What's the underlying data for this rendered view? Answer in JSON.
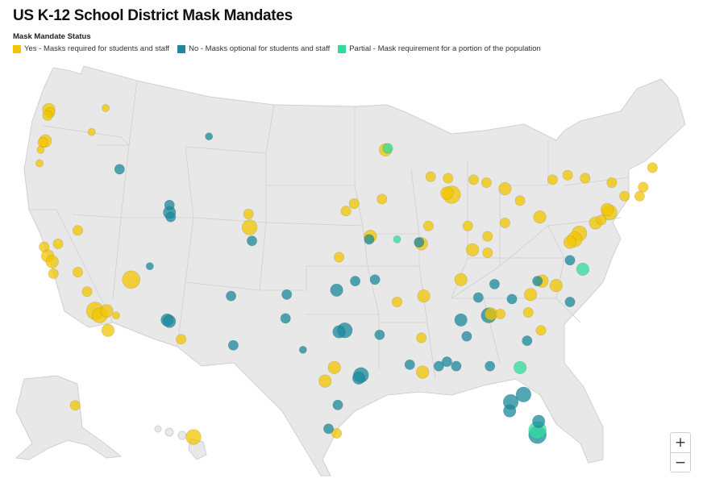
{
  "title": "US K-12 School District Mask Mandates",
  "legend": {
    "title": "Mask Mandate Status",
    "items": [
      {
        "label": "Yes - Masks required for students and staff",
        "color": "#f2c500"
      },
      {
        "label": "No - Masks optional for students and staff",
        "color": "#1a8a9c"
      },
      {
        "label": "Partial - Mask requirement for a portion of the population",
        "color": "#2fdc9c"
      }
    ]
  },
  "zoom": {
    "in_label": "+",
    "out_label": "−"
  },
  "colors": {
    "land": "#e8e8e8",
    "border": "#cfcfcf",
    "water": "#ffffff"
  },
  "districts": [
    {
      "lon": -122.3,
      "lat": 47.6,
      "status": "yes",
      "size": 3
    },
    {
      "lon": -122.2,
      "lat": 47.4,
      "status": "yes",
      "size": 2
    },
    {
      "lon": -122.4,
      "lat": 47.2,
      "status": "yes",
      "size": 2
    },
    {
      "lon": -122.6,
      "lat": 45.5,
      "status": "yes",
      "size": 3
    },
    {
      "lon": -122.8,
      "lat": 45.4,
      "status": "yes",
      "size": 2
    },
    {
      "lon": -117.4,
      "lat": 47.7,
      "status": "yes",
      "size": 1
    },
    {
      "lon": -118.6,
      "lat": 46.1,
      "status": "yes",
      "size": 1
    },
    {
      "lon": -123.0,
      "lat": 44.9,
      "status": "yes",
      "size": 1
    },
    {
      "lon": -123.1,
      "lat": 44.0,
      "status": "yes",
      "size": 1
    },
    {
      "lon": -122.4,
      "lat": 37.8,
      "status": "yes",
      "size": 3
    },
    {
      "lon": -122.0,
      "lat": 37.4,
      "status": "yes",
      "size": 3
    },
    {
      "lon": -121.5,
      "lat": 38.6,
      "status": "yes",
      "size": 2
    },
    {
      "lon": -122.7,
      "lat": 38.4,
      "status": "yes",
      "size": 2
    },
    {
      "lon": -121.9,
      "lat": 36.6,
      "status": "yes",
      "size": 2
    },
    {
      "lon": -119.8,
      "lat": 36.7,
      "status": "yes",
      "size": 2
    },
    {
      "lon": -119.0,
      "lat": 35.4,
      "status": "yes",
      "size": 2
    },
    {
      "lon": -118.3,
      "lat": 34.1,
      "status": "yes",
      "size": 5
    },
    {
      "lon": -117.9,
      "lat": 33.8,
      "status": "yes",
      "size": 4
    },
    {
      "lon": -117.3,
      "lat": 34.1,
      "status": "yes",
      "size": 3
    },
    {
      "lon": -117.2,
      "lat": 32.8,
      "status": "yes",
      "size": 3
    },
    {
      "lon": -116.5,
      "lat": 33.8,
      "status": "yes",
      "size": 1
    },
    {
      "lon": -115.2,
      "lat": 36.2,
      "status": "yes",
      "size": 5
    },
    {
      "lon": -119.8,
      "lat": 39.5,
      "status": "yes",
      "size": 2
    },
    {
      "lon": -116.2,
      "lat": 43.6,
      "status": "no",
      "size": 2
    },
    {
      "lon": -111.9,
      "lat": 40.7,
      "status": "no",
      "size": 3
    },
    {
      "lon": -111.8,
      "lat": 40.4,
      "status": "no",
      "size": 2
    },
    {
      "lon": -111.9,
      "lat": 41.2,
      "status": "no",
      "size": 2
    },
    {
      "lon": -113.6,
      "lat": 37.1,
      "status": "no",
      "size": 1
    },
    {
      "lon": -112.1,
      "lat": 33.5,
      "status": "no",
      "size": 3
    },
    {
      "lon": -111.9,
      "lat": 33.4,
      "status": "no",
      "size": 3
    },
    {
      "lon": -110.9,
      "lat": 32.2,
      "status": "yes",
      "size": 2
    },
    {
      "lon": -105.0,
      "lat": 39.7,
      "status": "yes",
      "size": 4
    },
    {
      "lon": -104.8,
      "lat": 38.8,
      "status": "no",
      "size": 2
    },
    {
      "lon": -105.1,
      "lat": 40.6,
      "status": "yes",
      "size": 2
    },
    {
      "lon": -106.6,
      "lat": 35.1,
      "status": "no",
      "size": 2
    },
    {
      "lon": -106.4,
      "lat": 31.8,
      "status": "no",
      "size": 2
    },
    {
      "lon": -108.5,
      "lat": 45.8,
      "status": "no",
      "size": 1
    },
    {
      "lon": -96.7,
      "lat": 40.8,
      "status": "yes",
      "size": 2
    },
    {
      "lon": -96.0,
      "lat": 41.3,
      "status": "yes",
      "size": 2
    },
    {
      "lon": -97.3,
      "lat": 37.7,
      "status": "yes",
      "size": 2
    },
    {
      "lon": -94.6,
      "lat": 39.1,
      "status": "yes",
      "size": 3
    },
    {
      "lon": -94.7,
      "lat": 38.9,
      "status": "no",
      "size": 2
    },
    {
      "lon": -93.6,
      "lat": 41.6,
      "status": "yes",
      "size": 2
    },
    {
      "lon": -93.3,
      "lat": 44.9,
      "status": "yes",
      "size": 3
    },
    {
      "lon": -93.1,
      "lat": 45.0,
      "status": "partial",
      "size": 2
    },
    {
      "lon": -90.2,
      "lat": 38.6,
      "status": "yes",
      "size": 3
    },
    {
      "lon": -90.4,
      "lat": 38.7,
      "status": "no",
      "size": 2
    },
    {
      "lon": -92.3,
      "lat": 38.9,
      "status": "partial",
      "size": 1
    },
    {
      "lon": -97.5,
      "lat": 35.5,
      "status": "no",
      "size": 3
    },
    {
      "lon": -95.9,
      "lat": 36.1,
      "status": "no",
      "size": 2
    },
    {
      "lon": -96.8,
      "lat": 32.8,
      "status": "no",
      "size": 4
    },
    {
      "lon": -97.3,
      "lat": 32.7,
      "status": "no",
      "size": 3
    },
    {
      "lon": -97.7,
      "lat": 30.3,
      "status": "yes",
      "size": 3
    },
    {
      "lon": -98.5,
      "lat": 29.4,
      "status": "yes",
      "size": 3
    },
    {
      "lon": -95.4,
      "lat": 29.8,
      "status": "no",
      "size": 4
    },
    {
      "lon": -95.6,
      "lat": 29.6,
      "status": "no",
      "size": 3
    },
    {
      "lon": -97.4,
      "lat": 27.8,
      "status": "no",
      "size": 2
    },
    {
      "lon": -97.5,
      "lat": 25.9,
      "status": "yes",
      "size": 2
    },
    {
      "lon": -98.2,
      "lat": 26.2,
      "status": "no",
      "size": 2
    },
    {
      "lon": -101.8,
      "lat": 35.2,
      "status": "no",
      "size": 2
    },
    {
      "lon": -101.9,
      "lat": 33.6,
      "status": "no",
      "size": 2
    },
    {
      "lon": -100.4,
      "lat": 31.5,
      "status": "no",
      "size": 1
    },
    {
      "lon": -92.3,
      "lat": 34.7,
      "status": "yes",
      "size": 2
    },
    {
      "lon": -94.2,
      "lat": 36.2,
      "status": "no",
      "size": 2
    },
    {
      "lon": -91.2,
      "lat": 30.5,
      "status": "no",
      "size": 2
    },
    {
      "lon": -90.1,
      "lat": 30.0,
      "status": "yes",
      "size": 3
    },
    {
      "lon": -93.8,
      "lat": 32.5,
      "status": "no",
      "size": 2
    },
    {
      "lon": -90.2,
      "lat": 32.3,
      "status": "yes",
      "size": 2
    },
    {
      "lon": -88.7,
      "lat": 30.4,
      "status": "no",
      "size": 2
    },
    {
      "lon": -90.0,
      "lat": 35.1,
      "status": "yes",
      "size": 3
    },
    {
      "lon": -86.8,
      "lat": 36.2,
      "status": "yes",
      "size": 3
    },
    {
      "lon": -85.3,
      "lat": 35.0,
      "status": "no",
      "size": 2
    },
    {
      "lon": -83.9,
      "lat": 35.9,
      "status": "no",
      "size": 2
    },
    {
      "lon": -86.8,
      "lat": 33.5,
      "status": "no",
      "size": 3
    },
    {
      "lon": -86.3,
      "lat": 32.4,
      "status": "no",
      "size": 2
    },
    {
      "lon": -88.0,
      "lat": 30.7,
      "status": "no",
      "size": 2
    },
    {
      "lon": -84.4,
      "lat": 33.8,
      "status": "no",
      "size": 4
    },
    {
      "lon": -84.2,
      "lat": 33.9,
      "status": "yes",
      "size": 3
    },
    {
      "lon": -83.4,
      "lat": 33.9,
      "status": "yes",
      "size": 2
    },
    {
      "lon": -81.1,
      "lat": 32.1,
      "status": "no",
      "size": 2
    },
    {
      "lon": -80.8,
      "lat": 35.2,
      "status": "yes",
      "size": 3
    },
    {
      "lon": -78.6,
      "lat": 35.8,
      "status": "yes",
      "size": 3
    },
    {
      "lon": -79.8,
      "lat": 36.1,
      "status": "yes",
      "size": 3
    },
    {
      "lon": -80.2,
      "lat": 36.1,
      "status": "no",
      "size": 2
    },
    {
      "lon": -77.4,
      "lat": 34.7,
      "status": "no",
      "size": 2
    },
    {
      "lon": -81.0,
      "lat": 34.0,
      "status": "yes",
      "size": 2
    },
    {
      "lon": -79.9,
      "lat": 32.8,
      "status": "yes",
      "size": 2
    },
    {
      "lon": -82.4,
      "lat": 34.9,
      "status": "no",
      "size": 2
    },
    {
      "lon": -81.7,
      "lat": 30.3,
      "status": "partial",
      "size": 3
    },
    {
      "lon": -82.5,
      "lat": 28.0,
      "status": "no",
      "size": 4
    },
    {
      "lon": -81.4,
      "lat": 28.5,
      "status": "no",
      "size": 4
    },
    {
      "lon": -82.6,
      "lat": 27.4,
      "status": "no",
      "size": 3
    },
    {
      "lon": -80.2,
      "lat": 25.8,
      "status": "no",
      "size": 5
    },
    {
      "lon": -80.2,
      "lat": 26.1,
      "status": "partial",
      "size": 5
    },
    {
      "lon": -80.1,
      "lat": 26.7,
      "status": "no",
      "size": 3
    },
    {
      "lon": -84.3,
      "lat": 30.4,
      "status": "no",
      "size": 2
    },
    {
      "lon": -87.2,
      "lat": 30.4,
      "status": "no",
      "size": 2
    },
    {
      "lon": -85.8,
      "lat": 38.2,
      "status": "yes",
      "size": 3
    },
    {
      "lon": -84.5,
      "lat": 38.0,
      "status": "yes",
      "size": 2
    },
    {
      "lon": -84.5,
      "lat": 39.1,
      "status": "yes",
      "size": 2
    },
    {
      "lon": -83.0,
      "lat": 40.0,
      "status": "yes",
      "size": 2
    },
    {
      "lon": -81.7,
      "lat": 41.5,
      "status": "yes",
      "size": 2
    },
    {
      "lon": -86.2,
      "lat": 39.8,
      "status": "yes",
      "size": 2
    },
    {
      "lon": -87.6,
      "lat": 41.9,
      "status": "yes",
      "size": 5
    },
    {
      "lon": -88.0,
      "lat": 42.0,
      "status": "yes",
      "size": 3
    },
    {
      "lon": -89.6,
      "lat": 39.8,
      "status": "yes",
      "size": 2
    },
    {
      "lon": -87.9,
      "lat": 43.0,
      "status": "yes",
      "size": 2
    },
    {
      "lon": -89.4,
      "lat": 43.1,
      "status": "yes",
      "size": 2
    },
    {
      "lon": -83.0,
      "lat": 42.3,
      "status": "yes",
      "size": 3
    },
    {
      "lon": -85.7,
      "lat": 42.9,
      "status": "yes",
      "size": 2
    },
    {
      "lon": -84.6,
      "lat": 42.7,
      "status": "yes",
      "size": 2
    },
    {
      "lon": -80.0,
      "lat": 40.4,
      "status": "yes",
      "size": 3
    },
    {
      "lon": -75.2,
      "lat": 40.0,
      "status": "yes",
      "size": 3
    },
    {
      "lon": -76.6,
      "lat": 39.3,
      "status": "yes",
      "size": 4
    },
    {
      "lon": -77.0,
      "lat": 38.9,
      "status": "yes",
      "size": 4
    },
    {
      "lon": -77.4,
      "lat": 38.7,
      "status": "yes",
      "size": 3
    },
    {
      "lon": -77.4,
      "lat": 37.5,
      "status": "no",
      "size": 2
    },
    {
      "lon": -76.3,
      "lat": 36.9,
      "status": "partial",
      "size": 3
    },
    {
      "lon": -74.0,
      "lat": 40.7,
      "status": "yes",
      "size": 4
    },
    {
      "lon": -74.2,
      "lat": 40.9,
      "status": "yes",
      "size": 3
    },
    {
      "lon": -74.7,
      "lat": 40.2,
      "status": "yes",
      "size": 2
    },
    {
      "lon": -73.8,
      "lat": 42.7,
      "status": "yes",
      "size": 2
    },
    {
      "lon": -76.1,
      "lat": 43.0,
      "status": "yes",
      "size": 2
    },
    {
      "lon": -78.9,
      "lat": 42.9,
      "status": "yes",
      "size": 2
    },
    {
      "lon": -77.6,
      "lat": 43.2,
      "status": "yes",
      "size": 2
    },
    {
      "lon": -71.1,
      "lat": 42.4,
      "status": "yes",
      "size": 2
    },
    {
      "lon": -71.4,
      "lat": 41.8,
      "status": "yes",
      "size": 2
    },
    {
      "lon": -72.7,
      "lat": 41.8,
      "status": "yes",
      "size": 2
    },
    {
      "lon": -70.3,
      "lat": 43.7,
      "status": "yes",
      "size": 2
    },
    {
      "lon": -157.8,
      "lat": 21.3,
      "status": "yes",
      "size": 4
    },
    {
      "lon": -149.9,
      "lat": 61.2,
      "status": "yes",
      "size": 2
    }
  ]
}
